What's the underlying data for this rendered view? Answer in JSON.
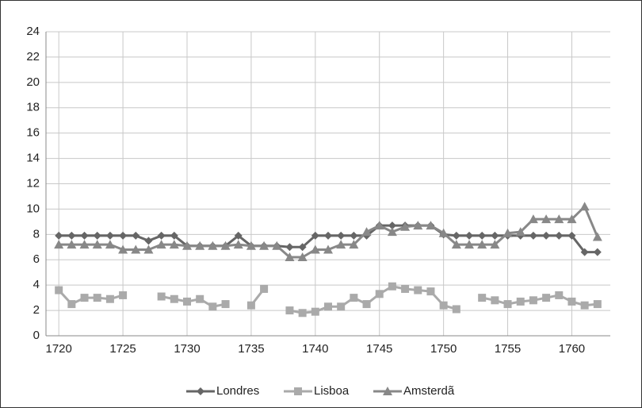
{
  "chart_data": {
    "type": "line",
    "x": [
      1720,
      1721,
      1722,
      1723,
      1724,
      1725,
      1726,
      1727,
      1728,
      1729,
      1730,
      1731,
      1732,
      1733,
      1734,
      1735,
      1736,
      1737,
      1738,
      1739,
      1740,
      1741,
      1742,
      1743,
      1744,
      1745,
      1746,
      1747,
      1748,
      1749,
      1750,
      1751,
      1752,
      1753,
      1754,
      1755,
      1756,
      1757,
      1758,
      1759,
      1760,
      1761,
      1762
    ],
    "series": [
      {
        "name": "Londres",
        "color": "#666666",
        "marker": "diamond",
        "values": [
          7.9,
          7.9,
          7.9,
          7.9,
          7.9,
          7.9,
          7.9,
          7.5,
          7.9,
          7.9,
          7.1,
          7.1,
          7.1,
          7.1,
          7.9,
          7.1,
          7.1,
          7.1,
          7.0,
          7.0,
          7.9,
          7.9,
          7.9,
          7.9,
          7.9,
          8.7,
          8.7,
          8.7,
          8.7,
          8.7,
          8.0,
          7.9,
          7.9,
          7.9,
          7.9,
          7.9,
          7.9,
          7.9,
          7.9,
          7.9,
          7.9,
          6.6,
          6.6
        ]
      },
      {
        "name": "Lisboa",
        "color": "#aaaaaa",
        "marker": "square",
        "values": [
          3.6,
          2.5,
          3.0,
          3.0,
          2.9,
          3.2,
          null,
          null,
          3.1,
          2.9,
          2.7,
          2.9,
          2.3,
          2.5,
          null,
          2.4,
          3.7,
          null,
          2.0,
          1.8,
          1.9,
          2.3,
          2.3,
          3.0,
          2.5,
          3.3,
          3.9,
          3.7,
          3.6,
          3.5,
          2.4,
          2.1,
          null,
          3.0,
          2.8,
          2.5,
          2.7,
          2.8,
          3.0,
          3.2,
          2.7,
          2.4,
          2.5
        ]
      },
      {
        "name": "Amsterdã",
        "color": "#888888",
        "marker": "triangle",
        "values": [
          7.2,
          7.2,
          7.2,
          7.2,
          7.2,
          6.8,
          6.8,
          6.8,
          7.2,
          7.2,
          7.1,
          7.1,
          7.1,
          7.1,
          7.2,
          7.1,
          7.1,
          7.1,
          6.2,
          6.2,
          6.8,
          6.8,
          7.2,
          7.2,
          8.2,
          8.7,
          8.2,
          8.6,
          8.7,
          8.7,
          8.1,
          7.2,
          7.2,
          7.2,
          7.2,
          8.1,
          8.2,
          9.2,
          9.2,
          9.2,
          9.2,
          10.2,
          7.8
        ]
      }
    ],
    "xlim": [
      1719,
      1763
    ],
    "xticks": [
      1720,
      1725,
      1730,
      1735,
      1740,
      1745,
      1750,
      1755,
      1760
    ],
    "ylim": [
      0,
      24
    ],
    "yticks": [
      0,
      2,
      4,
      6,
      8,
      10,
      12,
      14,
      16,
      18,
      20,
      22,
      24
    ],
    "grid": true,
    "legend": "bottom"
  }
}
